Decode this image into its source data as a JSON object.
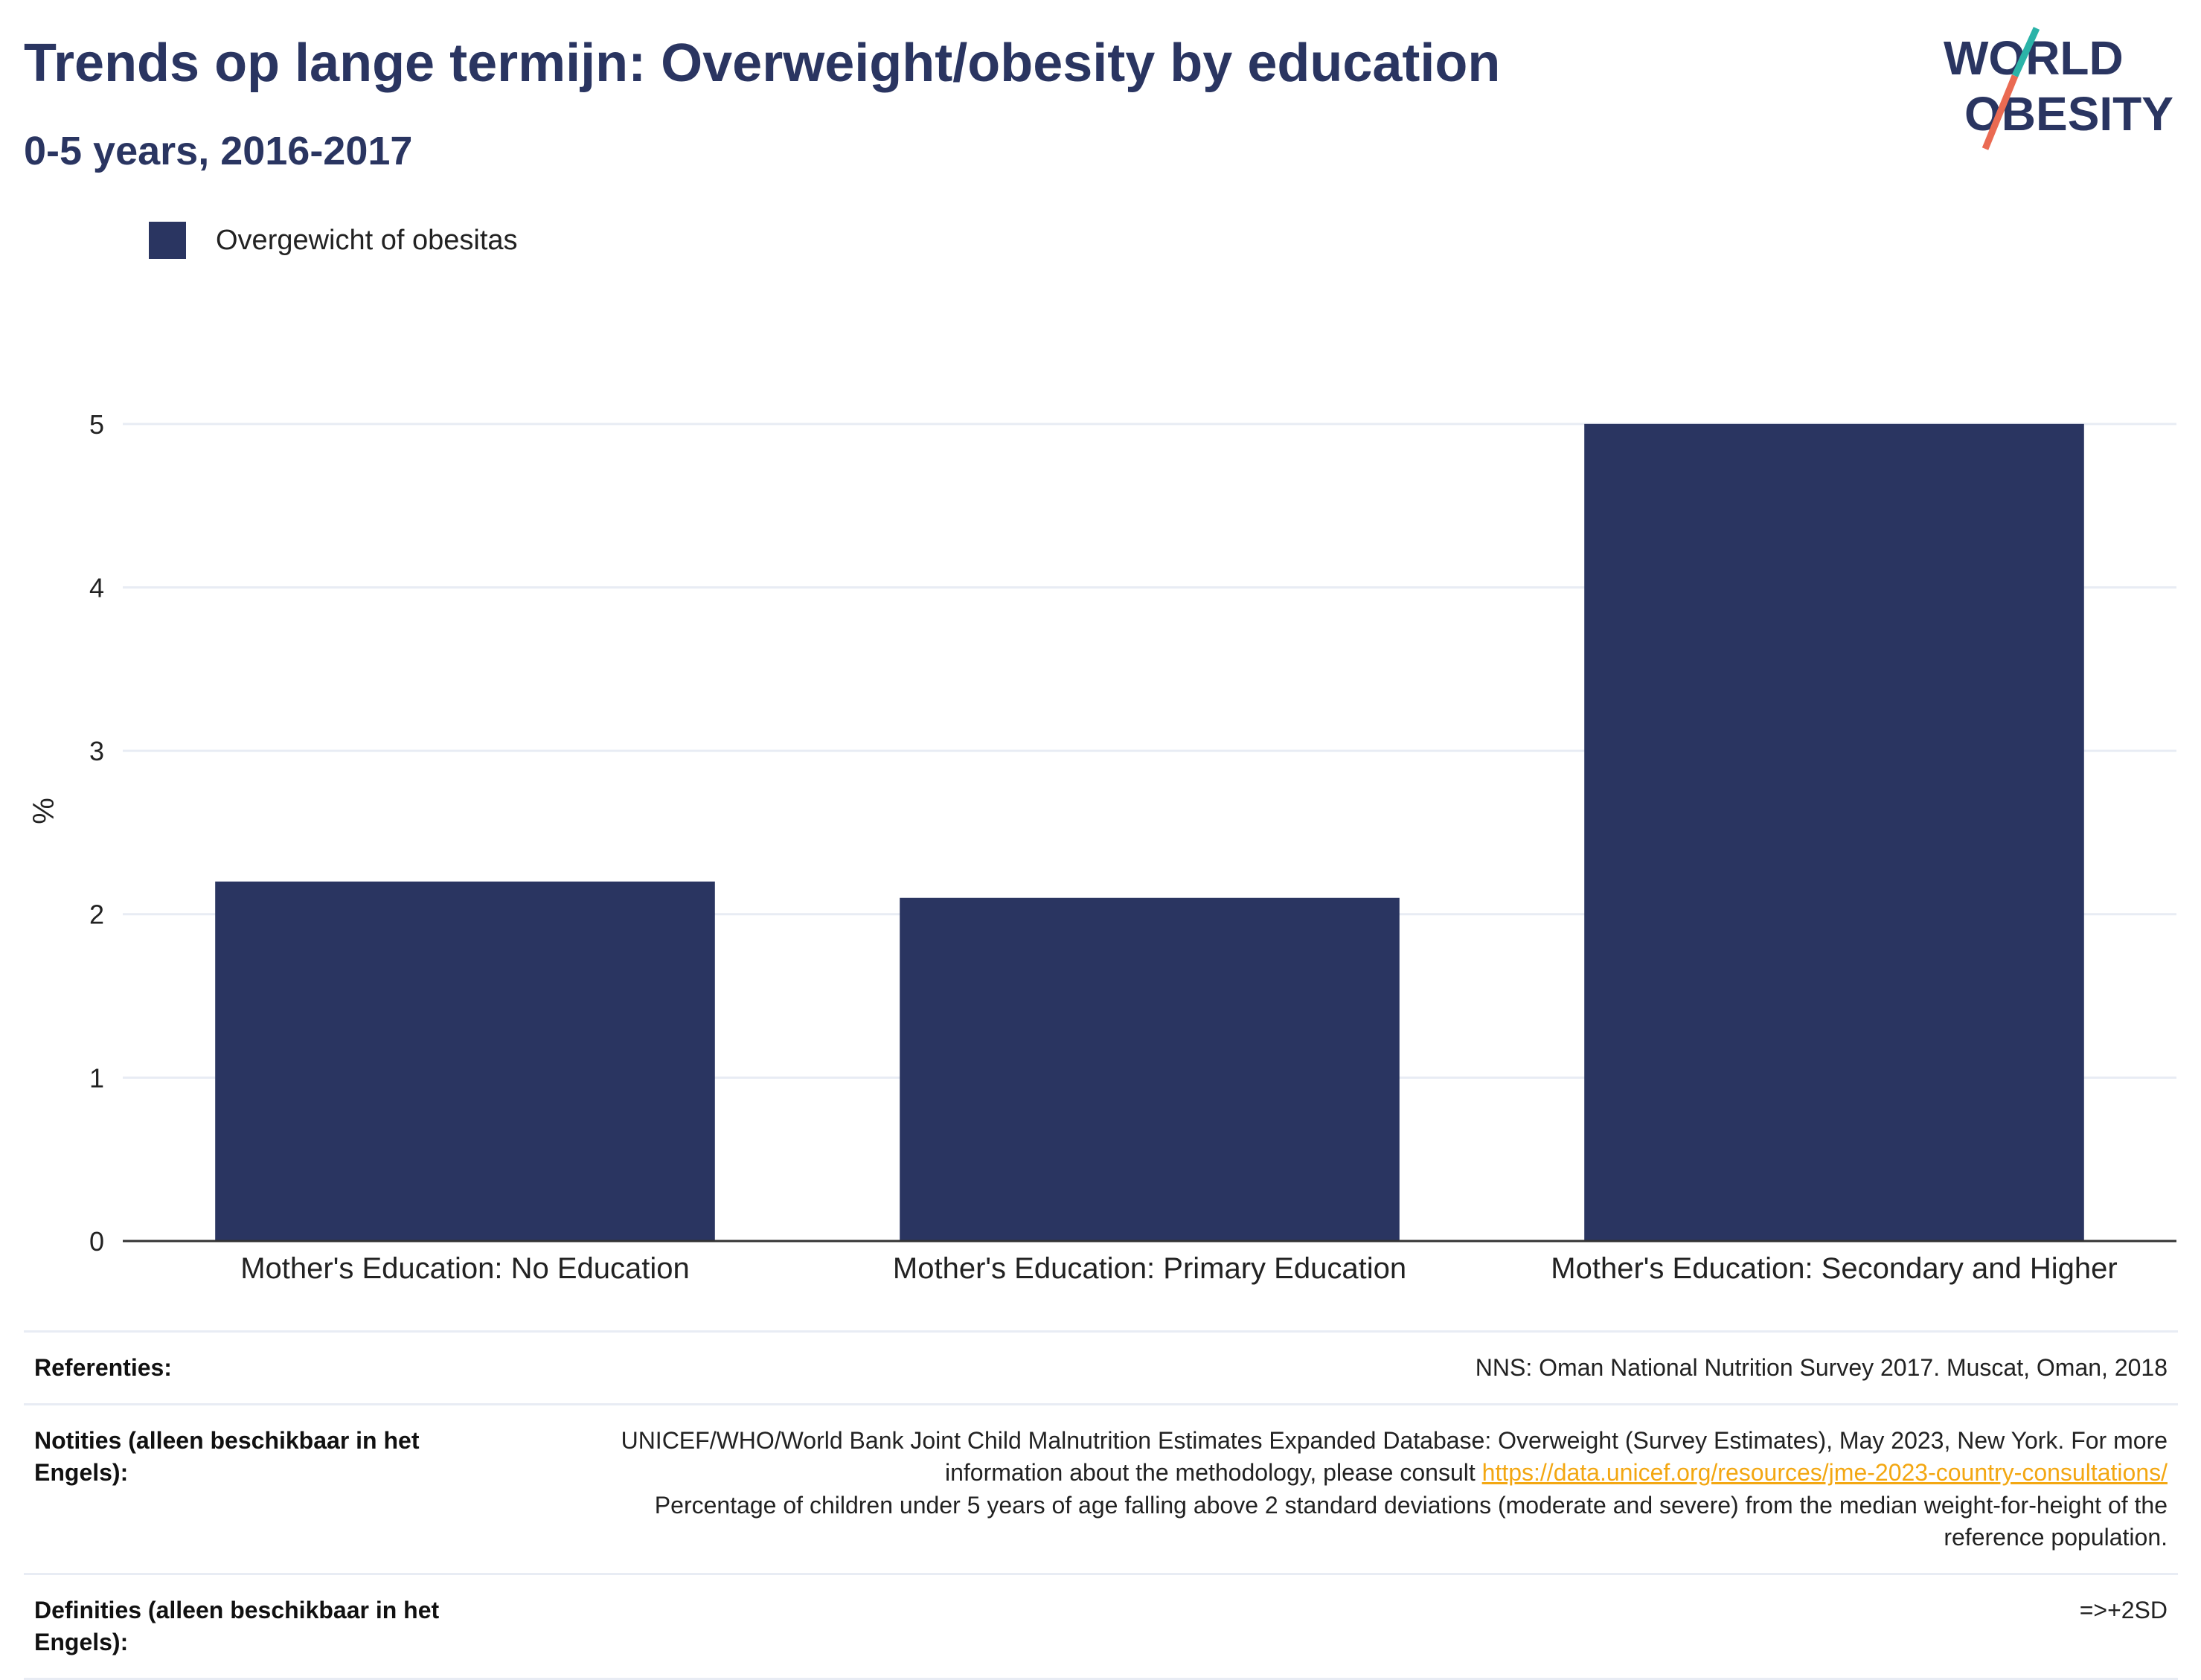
{
  "header": {
    "title": "Trends op lange termijn: Overweight/obesity by education",
    "subtitle": "0-5 years, 2016-2017"
  },
  "logo": {
    "line1": "WORLD",
    "line2": "OBESITY",
    "colors": {
      "text": "#2a3561",
      "teal": "#2bb3a8",
      "coral": "#ea6a52"
    }
  },
  "colors": {
    "bar": "#2a3561",
    "axis": "#333333",
    "grid": "#e8ecf4"
  },
  "chart_data": {
    "type": "bar",
    "title": "Trends op lange termijn: Overweight/obesity by education",
    "subtitle": "0-5 years, 2016-2017",
    "categories": [
      "Mother's Education: No Education",
      "Mother's Education: Primary Education",
      "Mother's Education: Secondary and Higher"
    ],
    "series": [
      {
        "name": "Overgewicht of obesitas",
        "values": [
          2.2,
          2.1,
          5.0
        ]
      }
    ],
    "xlabel": "",
    "ylabel": "%",
    "ylim": [
      0,
      5.5
    ],
    "yticks": [
      0,
      1,
      2,
      3,
      4,
      5
    ],
    "grid": true,
    "legend": "top-left"
  },
  "table": {
    "references_label": "Referenties:",
    "references_value": "NNS: Oman National Nutrition Survey 2017. Muscat, Oman, 2018",
    "notes_label": "Notities (alleen beschikbaar in het Engels):",
    "notes_text_1": "UNICEF/WHO/World Bank Joint Child Malnutrition Estimates Expanded Database: Overweight (Survey Estimates), May 2023, New York. For more information about the methodology, please consult ",
    "notes_link": "https://data.unicef.org/resources/jme-2023-country-consultations/",
    "notes_text_2": "Percentage of children under 5 years of age falling above 2 standard deviations (moderate and severe) from the median weight-for-height of the reference population.",
    "definitions_label": "Definities (alleen beschikbaar in het Engels):",
    "definitions_value": "=>+2SD"
  }
}
